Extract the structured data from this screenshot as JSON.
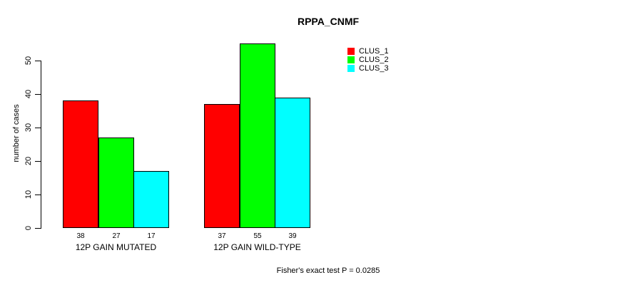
{
  "chart_data": {
    "type": "bar",
    "title": "RPPA_CNMF",
    "xlabel": "",
    "ylabel": "number of cases",
    "ylim": [
      0,
      55
    ],
    "yticks": [
      0,
      10,
      20,
      30,
      40,
      50
    ],
    "grid": false,
    "legend_position": "top-right",
    "categories": [
      "12P GAIN MUTATED",
      "12P GAIN WILD-TYPE"
    ],
    "series": [
      {
        "name": "CLUS_1",
        "color": "#ff0000",
        "values": [
          38,
          37
        ]
      },
      {
        "name": "CLUS_2",
        "color": "#00ff00",
        "values": [
          27,
          55
        ]
      },
      {
        "name": "CLUS_3",
        "color": "#00ffff",
        "values": [
          17,
          39
        ]
      }
    ],
    "bar_value_labels": [
      [
        38,
        27,
        17
      ],
      [
        37,
        55,
        39
      ]
    ],
    "annotation": "Fisher's exact test P = 0.0285"
  },
  "colors": {
    "background": "#ffffff",
    "axis": "#000000",
    "text": "#000000",
    "bar_border": "#000000"
  }
}
